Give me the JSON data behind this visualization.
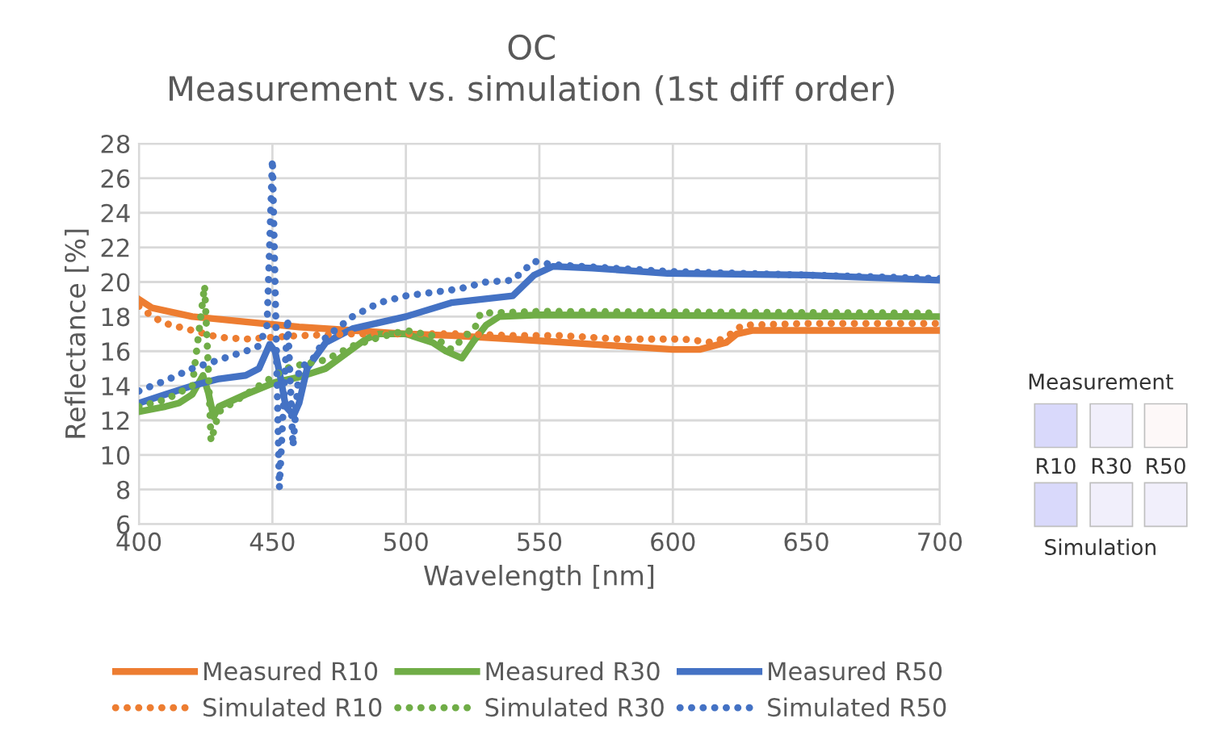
{
  "chart_data": {
    "type": "line",
    "title": "OC",
    "subtitle": "Measurement vs. simulation (1st diff order)",
    "xlabel": "Wavelength [nm]",
    "ylabel": "Reflectance [%]",
    "xlim": [
      400,
      700
    ],
    "xticks": [
      400,
      450,
      500,
      550,
      600,
      650,
      700
    ],
    "ylim": [
      6,
      28
    ],
    "yticks": [
      6,
      8,
      10,
      12,
      14,
      16,
      18,
      20,
      22,
      24,
      26,
      28
    ],
    "grid": true,
    "legend": "bottom",
    "annotations": [
      "Measurement",
      "R10",
      "R30",
      "R50",
      "Simulation"
    ],
    "series": [
      {
        "name": "Measured R10",
        "color": "#ed7d31",
        "line_style": "solid",
        "x": [
          400,
          405,
          420,
          440,
          460,
          480,
          500,
          517,
          540,
          560,
          580,
          600,
          610,
          620,
          624,
          630,
          650,
          700
        ],
        "values": [
          19.0,
          18.5,
          18.0,
          17.7,
          17.4,
          17.2,
          17.0,
          16.9,
          16.7,
          16.5,
          16.3,
          16.1,
          16.1,
          16.5,
          17.0,
          17.2,
          17.2,
          17.2
        ]
      },
      {
        "name": "Measured R30",
        "color": "#70ad47",
        "line_style": "solid",
        "x": [
          400,
          410,
          415,
          420,
          424,
          426,
          428,
          430,
          440,
          451,
          460,
          470,
          485,
          490,
          500,
          510,
          515,
          521,
          525,
          530,
          535,
          550,
          700
        ],
        "values": [
          12.5,
          12.8,
          13.0,
          13.5,
          14.6,
          13.6,
          12.2,
          12.8,
          13.5,
          14.2,
          14.5,
          15.0,
          16.7,
          17.0,
          17.0,
          16.5,
          16.0,
          15.6,
          16.5,
          17.5,
          18.0,
          18.1,
          18.0
        ]
      },
      {
        "name": "Measured R50",
        "color": "#4472c4",
        "line_style": "solid",
        "x": [
          400,
          410,
          420,
          430,
          440,
          445,
          449,
          451,
          453,
          455,
          458,
          460,
          463,
          470,
          480,
          500,
          517,
          540,
          548,
          555,
          570,
          598,
          650,
          700
        ],
        "values": [
          13.0,
          13.5,
          14.0,
          14.4,
          14.6,
          15.0,
          16.4,
          16.0,
          14.5,
          12.8,
          12.3,
          13.0,
          15.0,
          16.5,
          17.3,
          18.0,
          18.8,
          19.2,
          20.4,
          20.9,
          20.8,
          20.5,
          20.4,
          20.1
        ]
      },
      {
        "name": "Simulated R10",
        "color": "#ed7d31",
        "line_style": "dotted",
        "x": [
          400,
          405,
          410,
          420,
          430,
          440,
          450,
          460,
          480,
          500,
          520,
          540,
          558,
          580,
          604,
          615,
          620,
          626,
          650,
          700
        ],
        "values": [
          18.6,
          18.0,
          17.6,
          17.2,
          16.8,
          16.7,
          16.8,
          16.9,
          17.0,
          17.0,
          17.0,
          16.9,
          16.9,
          16.7,
          16.7,
          16.5,
          16.8,
          17.5,
          17.6,
          17.6
        ]
      },
      {
        "name": "Simulated R30",
        "color": "#70ad47",
        "line_style": "dotted",
        "x": [
          400,
          410,
          420,
          424.6,
          426,
          427,
          430,
          440,
          450,
          455,
          460,
          470,
          480,
          490,
          500,
          510,
          517,
          526,
          528,
          550,
          700
        ],
        "values": [
          12.8,
          13.2,
          14.0,
          19.8,
          15.0,
          10.8,
          12.5,
          13.5,
          14.5,
          15.0,
          15.2,
          15.5,
          16.3,
          16.8,
          17.2,
          16.9,
          16.1,
          17.4,
          18.2,
          18.3,
          18.2
        ]
      },
      {
        "name": "Simulated R50",
        "color": "#4472c4",
        "line_style": "dotted",
        "x": [
          400,
          410,
          420,
          430,
          440,
          445,
          448,
          450,
          452.6,
          455.7,
          457.7,
          460,
          465,
          470,
          480,
          490,
          500,
          520,
          530,
          540,
          548,
          555,
          600,
          650,
          700
        ],
        "values": [
          13.7,
          14.3,
          15.0,
          15.5,
          16.0,
          16.3,
          17.5,
          27.1,
          8.1,
          17.9,
          10.5,
          15.0,
          15.5,
          16.8,
          18.0,
          18.8,
          19.2,
          19.6,
          20.0,
          20.1,
          21.2,
          21.0,
          20.6,
          20.4,
          20.2
        ]
      }
    ]
  }
}
